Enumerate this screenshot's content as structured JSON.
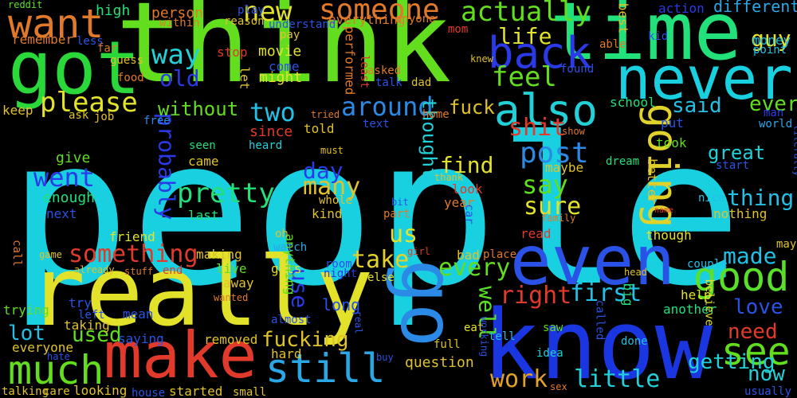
{
  "background": "#000000",
  "words": [
    {
      "t": "people",
      "c": "#18d0e0"
    },
    {
      "t": "think",
      "c": "#62de1e"
    },
    {
      "t": "really",
      "c": "#e2e22a"
    },
    {
      "t": "know",
      "c": "#1a36e0"
    },
    {
      "t": "time",
      "c": "#22e07a"
    },
    {
      "t": "got",
      "c": "#2ad83a"
    },
    {
      "t": "never",
      "c": "#18d0e0"
    },
    {
      "t": "even",
      "c": "#2a52e6"
    },
    {
      "t": "make",
      "c": "#e23a2a"
    },
    {
      "t": "back",
      "c": "#2a3ae6"
    },
    {
      "t": "go",
      "c": "#2a8ae6"
    },
    {
      "t": "want",
      "c": "#e07a2a"
    },
    {
      "t": "good",
      "c": "#5ae02a"
    },
    {
      "t": "much",
      "c": "#62de1e"
    },
    {
      "t": "still",
      "c": "#2aa8e6"
    },
    {
      "t": "going",
      "c": "#e0d22a"
    },
    {
      "t": "also",
      "c": "#22d0d8"
    },
    {
      "t": "see",
      "c": "#62de1e"
    },
    {
      "t": "someone",
      "c": "#e07a2a"
    },
    {
      "t": "actually",
      "c": "#62de1e"
    },
    {
      "t": "pretty",
      "c": "#22e07a"
    },
    {
      "t": "something",
      "c": "#e23a2a"
    },
    {
      "t": "way",
      "c": "#22d0d8"
    },
    {
      "t": "new",
      "c": "#e2e22a"
    },
    {
      "t": "please",
      "c": "#e2e22a"
    },
    {
      "t": "feel",
      "c": "#62de1e"
    },
    {
      "t": "post",
      "c": "#2a8ae6"
    },
    {
      "t": "say",
      "c": "#62de1e"
    },
    {
      "t": "two",
      "c": "#22c0e6"
    },
    {
      "t": "around",
      "c": "#2a8ae6"
    },
    {
      "t": "went",
      "c": "#2a3ae6"
    },
    {
      "t": "work",
      "c": "#e2a22a"
    },
    {
      "t": "little",
      "c": "#22d0d8"
    },
    {
      "t": "first",
      "c": "#22c0e6"
    },
    {
      "t": "right",
      "c": "#e23a2a"
    },
    {
      "t": "shit",
      "c": "#e23a2a"
    },
    {
      "t": "many",
      "c": "#e0c22a"
    },
    {
      "t": "every",
      "c": "#62de1e"
    },
    {
      "t": "take",
      "c": "#e2d22a"
    },
    {
      "t": "sure",
      "c": "#e2e22a"
    },
    {
      "t": "fuck",
      "c": "#e0c22a"
    },
    {
      "t": "old",
      "c": "#2a3ae6"
    },
    {
      "t": "probably",
      "c": "#2a3ae6"
    },
    {
      "t": "thing",
      "c": "#22c0e6"
    },
    {
      "t": "made",
      "c": "#22c0e6"
    },
    {
      "t": "life",
      "c": "#e2e22a"
    },
    {
      "t": "us",
      "c": "#e2e22a"
    },
    {
      "t": "day",
      "c": "#2a3ae6"
    },
    {
      "t": "find",
      "c": "#e2e22a"
    },
    {
      "t": "use",
      "c": "#2a3ae6"
    },
    {
      "t": "well",
      "c": "#5ae02a"
    },
    {
      "t": "fucking",
      "c": "#e0c22a"
    },
    {
      "t": "used",
      "c": "#62de1e"
    },
    {
      "t": "now",
      "c": "#22d0d8"
    },
    {
      "t": "love",
      "c": "#2a52e6"
    },
    {
      "t": "need",
      "c": "#e23a2a"
    },
    {
      "t": "getting",
      "c": "#22d0d8"
    },
    {
      "t": "lot",
      "c": "#22c0e6"
    },
    {
      "t": "ever",
      "c": "#62de1e"
    },
    {
      "t": "said",
      "c": "#22c0e6"
    },
    {
      "t": "without",
      "c": "#62de1e"
    },
    {
      "t": "thought",
      "c": "#22d0d8"
    },
    {
      "t": "great",
      "c": "#22d0d8"
    },
    {
      "t": "guy",
      "c": "#e2e22a"
    },
    {
      "t": "different",
      "c": "#2aa8e6"
    },
    {
      "t": "long",
      "c": "#2a52e6"
    },
    {
      "t": "high",
      "c": "#22e07a"
    },
    {
      "t": "person",
      "c": "#e07a2a"
    },
    {
      "t": "everything",
      "c": "#e07a2a"
    },
    {
      "t": "action",
      "c": "#2a3ae6"
    },
    {
      "t": "remember",
      "c": "#e07a2a"
    },
    {
      "t": "best",
      "c": "#e0c22a"
    },
    {
      "t": "money",
      "c": "#22c0e6"
    },
    {
      "t": "point",
      "c": "#22c0e6"
    },
    {
      "t": "movie",
      "c": "#e2e22a"
    },
    {
      "t": "come",
      "c": "#2a52e6"
    },
    {
      "t": "might",
      "c": "#e2e22a"
    },
    {
      "t": "let",
      "c": "#e0c22a"
    },
    {
      "t": "performed",
      "c": "#e07a2a"
    },
    {
      "t": "told",
      "c": "#e0c22a"
    },
    {
      "t": "school",
      "c": "#22e07a"
    },
    {
      "t": "since",
      "c": "#e23a2a"
    },
    {
      "t": "put",
      "c": "#2a52e6"
    },
    {
      "t": "man",
      "c": "#2a3ae6"
    },
    {
      "t": "world",
      "c": "#2aa8e6"
    },
    {
      "t": "keep",
      "c": "#e0c22a"
    },
    {
      "t": "ask",
      "c": "#e0c22a"
    },
    {
      "t": "job",
      "c": "#e0c22a"
    },
    {
      "t": "free",
      "c": "#2a8ae6"
    },
    {
      "t": "text",
      "c": "#2a52e6"
    },
    {
      "t": "tried",
      "c": "#e07a2a"
    },
    {
      "t": "home",
      "c": "#e07a2a"
    },
    {
      "t": "heard",
      "c": "#22d0d8"
    },
    {
      "t": "seen",
      "c": "#22e07a"
    },
    {
      "t": "came",
      "c": "#e0c22a"
    },
    {
      "t": "give",
      "c": "#62de1e"
    },
    {
      "t": "enough",
      "c": "#22e07a"
    },
    {
      "t": "next",
      "c": "#2a52e6"
    },
    {
      "t": "last",
      "c": "#22e07a"
    },
    {
      "t": "kind",
      "c": "#e0c22a"
    },
    {
      "t": "look",
      "c": "#e23a2a"
    },
    {
      "t": "year",
      "c": "#e07a2a"
    },
    {
      "t": "maybe",
      "c": "#e0c22a"
    },
    {
      "t": "took",
      "c": "#62de1e"
    },
    {
      "t": "dream",
      "c": "#22e07a"
    },
    {
      "t": "start",
      "c": "#2a52e6"
    },
    {
      "t": "better",
      "c": "#e0c22a"
    },
    {
      "t": "nice",
      "c": "#22c0e6"
    },
    {
      "t": "nothing",
      "c": "#e0c22a"
    },
    {
      "t": "friend",
      "c": "#e2e22a"
    },
    {
      "t": "read",
      "c": "#e23a2a"
    },
    {
      "t": "part",
      "c": "#e07a2a"
    },
    {
      "t": "though",
      "c": "#e2e22a"
    },
    {
      "t": "making",
      "c": "#e0c22a"
    },
    {
      "t": "live",
      "c": "#62de1e"
    },
    {
      "t": "away",
      "c": "#e0c22a"
    },
    {
      "t": "gets",
      "c": "#e2e22a"
    },
    {
      "t": "anything",
      "c": "#62de1e"
    },
    {
      "t": "watch",
      "c": "#2aa8e6"
    },
    {
      "t": "room",
      "c": "#2a52e6"
    },
    {
      "t": "night",
      "c": "#2a3ae6"
    },
    {
      "t": "bad",
      "c": "#e0c22a"
    },
    {
      "t": "place",
      "c": "#e07a2a"
    },
    {
      "t": "else",
      "c": "#e2e22a"
    },
    {
      "t": "trying",
      "c": "#62de1e"
    },
    {
      "t": "try",
      "c": "#2a52e6"
    },
    {
      "t": "left",
      "c": "#2a52e6"
    },
    {
      "t": "taking",
      "c": "#e0c22a"
    },
    {
      "t": "mean",
      "c": "#2a52e6"
    },
    {
      "t": "saying",
      "c": "#2a52e6"
    },
    {
      "t": "everyone",
      "c": "#e0c22a"
    },
    {
      "t": "removed",
      "c": "#e0c22a"
    },
    {
      "t": "hard",
      "c": "#e0c22a"
    },
    {
      "t": "almost",
      "c": "#2a52e6"
    },
    {
      "t": "question",
      "c": "#e0c22a"
    },
    {
      "t": "tell",
      "c": "#22c0e6"
    },
    {
      "t": "full",
      "c": "#e0c22a"
    },
    {
      "t": "eat",
      "c": "#e2e22a"
    },
    {
      "t": "working",
      "c": "#2a52e6"
    },
    {
      "t": "idea",
      "c": "#22d0d8"
    },
    {
      "t": "saw",
      "c": "#62de1e"
    },
    {
      "t": "called",
      "c": "#2a52e6"
    },
    {
      "t": "done",
      "c": "#22c0e6"
    },
    {
      "t": "help",
      "c": "#e2e22a"
    },
    {
      "t": "big",
      "c": "#22e07a"
    },
    {
      "t": "head",
      "c": "#e0c22a"
    },
    {
      "t": "couple",
      "c": "#22c0e6"
    },
    {
      "t": "another",
      "c": "#22e07a"
    },
    {
      "t": "believe",
      "c": "#e2e22a"
    },
    {
      "t": "usually",
      "c": "#2a52e6"
    },
    {
      "t": "talking",
      "c": "#e0c22a"
    },
    {
      "t": "care",
      "c": "#e0c22a"
    },
    {
      "t": "looking",
      "c": "#e0c22a"
    },
    {
      "t": "house",
      "c": "#2a52e6"
    },
    {
      "t": "started",
      "c": "#e0c22a"
    },
    {
      "t": "small",
      "c": "#e0c22a"
    },
    {
      "t": "sex",
      "c": "#e07a2a"
    },
    {
      "t": "reddit",
      "c": "#5ae02a"
    },
    {
      "t": "less",
      "c": "#2a52e6"
    },
    {
      "t": "far",
      "c": "#e07a2a"
    },
    {
      "t": "within",
      "c": "#e07a2a"
    },
    {
      "t": "play",
      "c": "#2a52e6"
    },
    {
      "t": "reason",
      "c": "#e0c22a"
    },
    {
      "t": "understand",
      "c": "#2a52e6"
    },
    {
      "t": "pay",
      "c": "#e0c22a"
    },
    {
      "t": "anyone",
      "c": "#e07a2a"
    },
    {
      "t": "mom",
      "c": "#e23a2a"
    },
    {
      "t": "able",
      "c": "#e07a2a"
    },
    {
      "t": "kid",
      "c": "#2a52e6"
    },
    {
      "t": "knew",
      "c": "#e0c22a"
    },
    {
      "t": "guess",
      "c": "#e0c22a"
    },
    {
      "t": "food",
      "c": "#e07a2a"
    },
    {
      "t": "stop",
      "c": "#e23a2a"
    },
    {
      "t": "asked",
      "c": "#e07a2a"
    },
    {
      "t": "talk",
      "c": "#2a52e6"
    },
    {
      "t": "dad",
      "c": "#e0c22a"
    },
    {
      "t": "found",
      "c": "#2a52e6"
    },
    {
      "t": "least",
      "c": "#e23a2a"
    },
    {
      "t": "must",
      "c": "#e0c22a"
    },
    {
      "t": "show",
      "c": "#e07a2a"
    },
    {
      "t": "whole",
      "c": "#e0c22a"
    },
    {
      "t": "thank",
      "c": "#e0c22a"
    },
    {
      "t": "bit",
      "c": "#2a52e6"
    },
    {
      "t": "girl",
      "c": "#e23a2a"
    },
    {
      "t": "family",
      "c": "#e07a2a"
    },
    {
      "t": "name",
      "c": "#e23a2a"
    },
    {
      "t": "literally",
      "c": "#2a52e6"
    },
    {
      "t": "either",
      "c": "#2a52e6"
    },
    {
      "t": "may",
      "c": "#e0c22a"
    },
    {
      "t": "call",
      "c": "#e07a2a"
    },
    {
      "t": "game",
      "c": "#e0c22a"
    },
    {
      "t": "already",
      "c": "#e0c22a"
    },
    {
      "t": "stuff",
      "c": "#e07a2a"
    },
    {
      "t": "end",
      "c": "#e23a2a"
    },
    {
      "t": "wanted",
      "c": "#e07a2a"
    },
    {
      "t": "real",
      "c": "#2a52e6"
    },
    {
      "t": "hate",
      "c": "#2a52e6"
    },
    {
      "t": "buy",
      "c": "#2a52e6"
    },
    {
      "t": "oh",
      "c": "#e0c22a"
    },
    {
      "t": "car",
      "c": "#2a52e6"
    }
  ]
}
